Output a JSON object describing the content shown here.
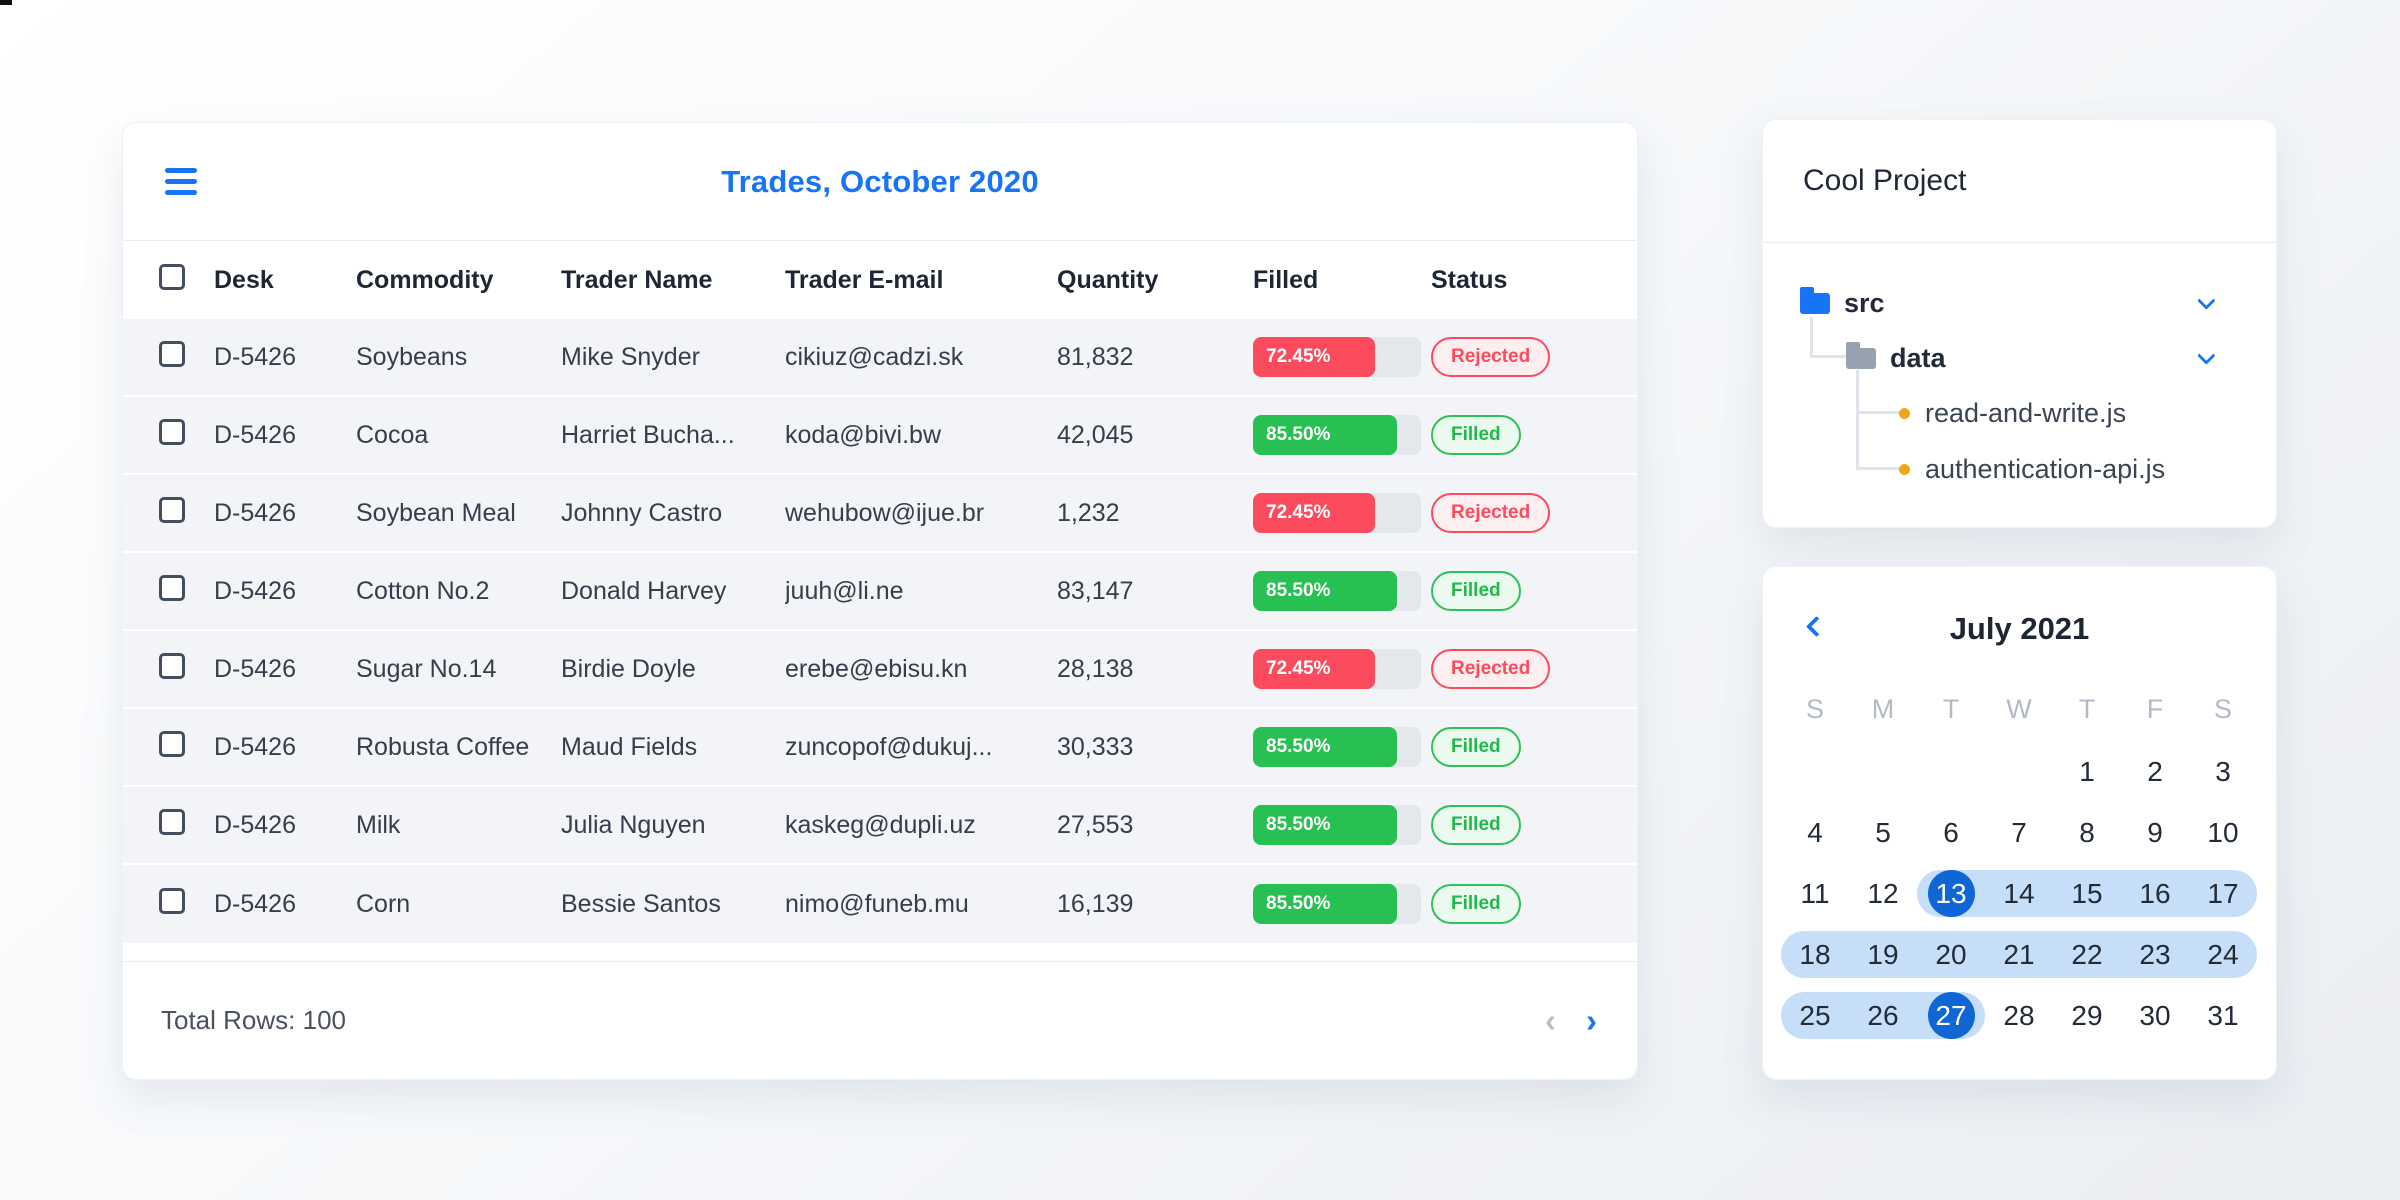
{
  "icons": {
    "menu": "hamburger",
    "tree_expand": "chevron-down",
    "calendar_prev": "chevron-left",
    "pager_prev": "‹",
    "pager_next": "›"
  },
  "table_card": {
    "title": "Trades, October 2020",
    "columns": [
      "Desk",
      "Commodity",
      "Trader Name",
      "Trader E-mail",
      "Quantity",
      "Filled",
      "Status"
    ],
    "rows": [
      {
        "desk": "D-5426",
        "commodity": "Soybeans",
        "trader": "Mike Snyder",
        "email": "cikiuz@cadzi.sk",
        "quantity": "81,832",
        "filled": "72.45%",
        "filled_pct": 72.45,
        "status": "Rejected"
      },
      {
        "desk": "D-5426",
        "commodity": "Cocoa",
        "trader": "Harriet Bucha...",
        "email": "koda@bivi.bw",
        "quantity": "42,045",
        "filled": "85.50%",
        "filled_pct": 85.5,
        "status": "Filled"
      },
      {
        "desk": "D-5426",
        "commodity": "Soybean Meal",
        "trader": "Johnny Castro",
        "email": "wehubow@ijue.br",
        "quantity": "1,232",
        "filled": "72.45%",
        "filled_pct": 72.45,
        "status": "Rejected"
      },
      {
        "desk": "D-5426",
        "commodity": "Cotton No.2",
        "trader": "Donald Harvey",
        "email": "juuh@li.ne",
        "quantity": "83,147",
        "filled": "85.50%",
        "filled_pct": 85.5,
        "status": "Filled"
      },
      {
        "desk": "D-5426",
        "commodity": "Sugar No.14",
        "trader": "Birdie Doyle",
        "email": "erebe@ebisu.kn",
        "quantity": "28,138",
        "filled": "72.45%",
        "filled_pct": 72.45,
        "status": "Rejected"
      },
      {
        "desk": "D-5426",
        "commodity": "Robusta Coffee",
        "trader": "Maud Fields",
        "email": "zuncopof@dukuj...",
        "quantity": "30,333",
        "filled": "85.50%",
        "filled_pct": 85.5,
        "status": "Filled"
      },
      {
        "desk": "D-5426",
        "commodity": "Milk",
        "trader": "Julia Nguyen",
        "email": "kaskeg@dupli.uz",
        "quantity": "27,553",
        "filled": "85.50%",
        "filled_pct": 85.5,
        "status": "Filled"
      },
      {
        "desk": "D-5426",
        "commodity": "Corn",
        "trader": "Bessie Santos",
        "email": "nimo@funeb.mu",
        "quantity": "16,139",
        "filled": "85.50%",
        "filled_pct": 85.5,
        "status": "Filled"
      }
    ],
    "footer": {
      "total_label": "Total Rows: 100"
    }
  },
  "file_tree": {
    "title": "Cool Project",
    "folders": [
      {
        "name": "src",
        "color": "#1774f6",
        "expanded": true
      },
      {
        "name": "data",
        "color": "#97a2b0",
        "expanded": true
      }
    ],
    "files": [
      {
        "name": "read-and-write.js"
      },
      {
        "name": "authentication-api.js"
      }
    ]
  },
  "calendar": {
    "title": "July 2021",
    "day_headers": [
      "S",
      "M",
      "T",
      "W",
      "T",
      "F",
      "S"
    ],
    "weeks": [
      [
        "",
        "",
        "",
        "",
        "1",
        "2",
        "3"
      ],
      [
        "4",
        "5",
        "6",
        "7",
        "8",
        "9",
        "10"
      ],
      [
        "11",
        "12",
        "13",
        "14",
        "15",
        "16",
        "17"
      ],
      [
        "18",
        "19",
        "20",
        "21",
        "22",
        "23",
        "24"
      ],
      [
        "25",
        "26",
        "27",
        "28",
        "29",
        "30",
        "31"
      ]
    ],
    "range": {
      "start": 13,
      "end": 27
    },
    "selected_days": [
      13,
      27
    ],
    "colors": {
      "range_band": "#c6def8",
      "selected_day": "#0f66d4",
      "accent": "#1774f6"
    }
  }
}
